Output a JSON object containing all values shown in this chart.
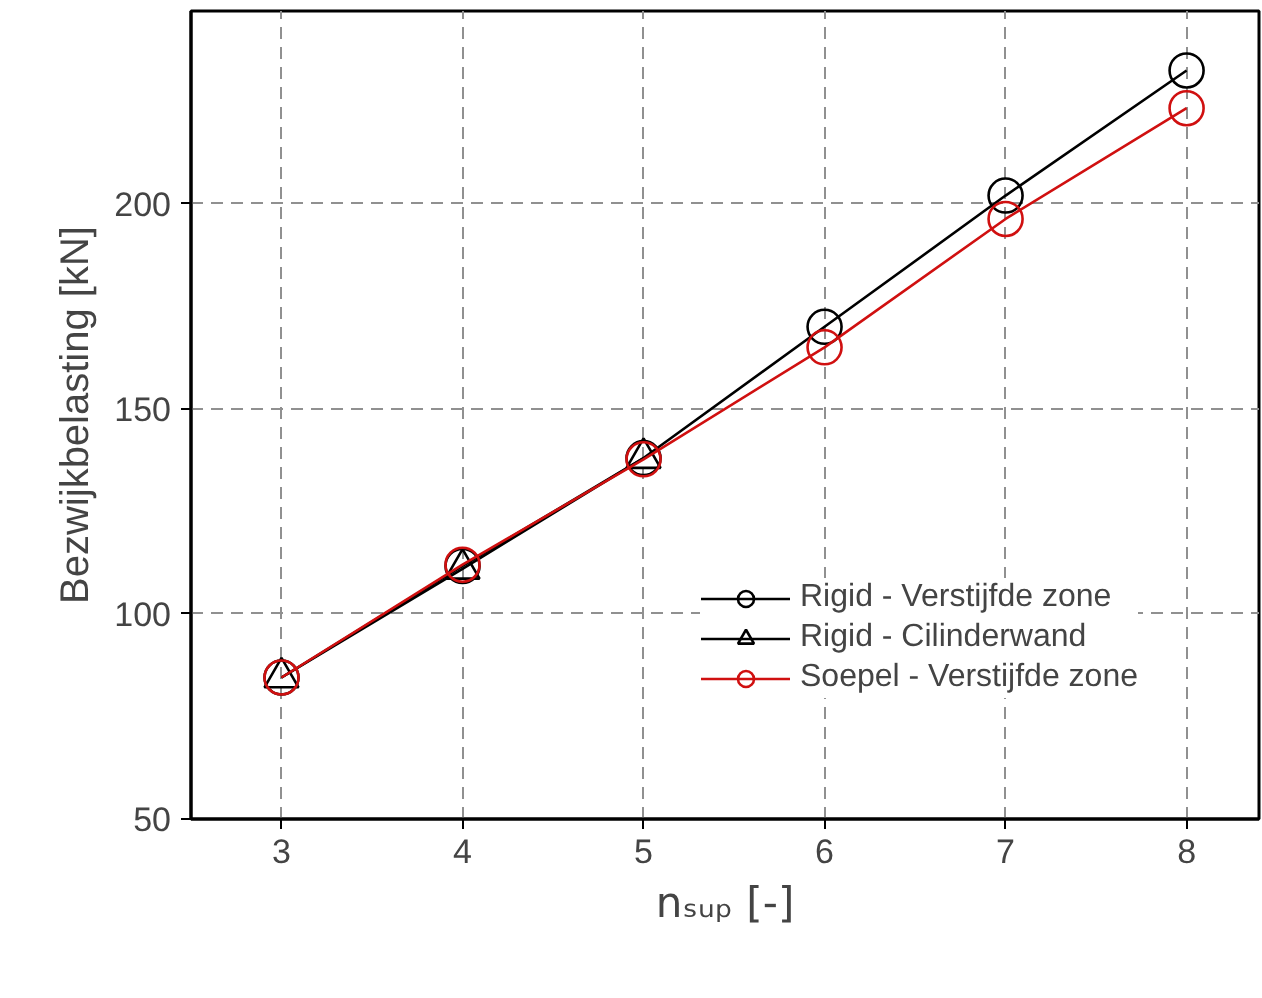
{
  "chart_data": {
    "type": "line",
    "xlabel": "nₛᵤₚ [-]",
    "ylabel": "Bezwijkbelasting [kN]",
    "x": [
      3,
      4,
      5,
      6,
      7,
      8
    ],
    "series": [
      {
        "name": "Rigid - Verstijfde zone",
        "color": "#000000",
        "marker": "circle",
        "values": [
          84.5,
          111.7,
          138,
          170,
          202,
          232.5
        ]
      },
      {
        "name": "Rigid - Cilinderwand",
        "color": "#000000",
        "marker": "triangle",
        "values": [
          84.5,
          111,
          138,
          null,
          null,
          null
        ]
      },
      {
        "name": "Soepel - Verstijfde zone",
        "color": "#d01010",
        "marker": "circle",
        "values": [
          84.5,
          112,
          137.7,
          165,
          196.3,
          223.3
        ]
      }
    ],
    "xlim": [
      2.5,
      8.4
    ],
    "ylim": [
      50,
      247
    ],
    "xticks": [
      3,
      4,
      5,
      6,
      7,
      8
    ],
    "yticks": [
      50,
      100,
      150,
      200
    ],
    "grid": true,
    "legend": "bottom right",
    "line_style": "solid"
  }
}
